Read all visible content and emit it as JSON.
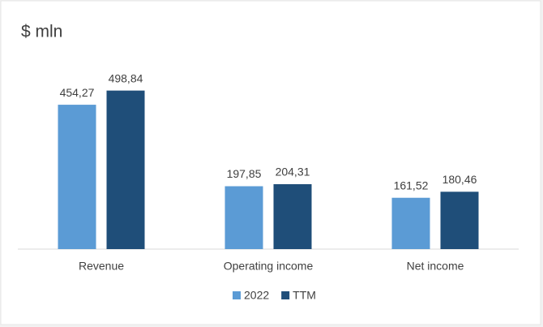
{
  "chart_data": {
    "type": "bar",
    "title": "$ mln",
    "categories": [
      "Revenue",
      "Operating income",
      "Net income"
    ],
    "series": [
      {
        "name": "2022",
        "color": "#5b9bd5",
        "values": [
          454.27,
          197.85,
          161.52
        ],
        "value_labels": [
          "454,27",
          "197,85",
          "161,52"
        ]
      },
      {
        "name": "TTM",
        "color": "#1f4e79",
        "values": [
          498.84,
          204.31,
          180.46
        ],
        "value_labels": [
          "498,84",
          "204,31",
          "180,46"
        ]
      }
    ],
    "ylim": [
      0,
      600
    ],
    "grid": false,
    "legend": "bottom"
  }
}
